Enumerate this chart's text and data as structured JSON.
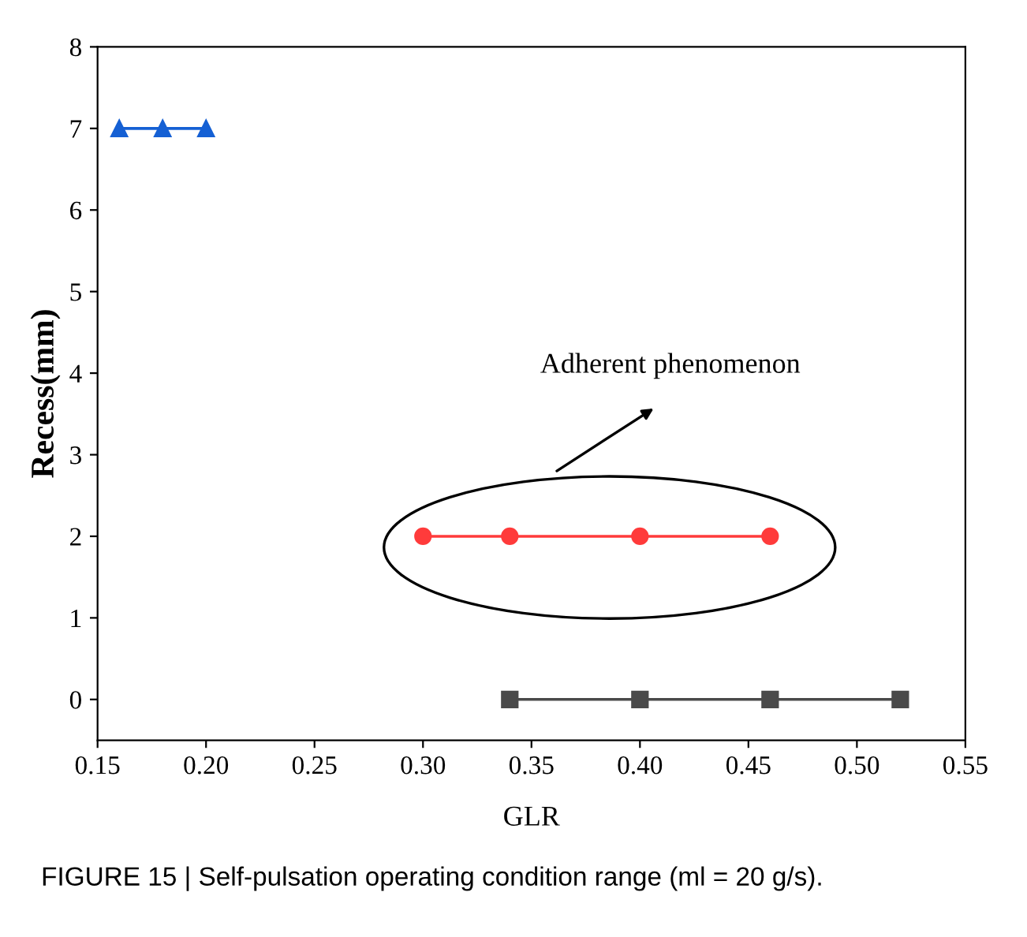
{
  "chart_data": {
    "type": "line",
    "xlabel": "GLR",
    "ylabel": "Recess(mm)",
    "xlim": [
      0.15,
      0.55
    ],
    "xticks": [
      {
        "value": 0.15,
        "label": "0.15"
      },
      {
        "value": 0.2,
        "label": "0.20"
      },
      {
        "value": 0.25,
        "label": "0.25"
      },
      {
        "value": 0.3,
        "label": "0.30"
      },
      {
        "value": 0.35,
        "label": "0.35"
      },
      {
        "value": 0.4,
        "label": "0.40"
      },
      {
        "value": 0.45,
        "label": "0.45"
      },
      {
        "value": 0.5,
        "label": "0.50"
      },
      {
        "value": 0.55,
        "label": "0.55"
      }
    ],
    "ylim": [
      -0.5,
      8
    ],
    "yticks": [
      0,
      1,
      2,
      3,
      4,
      5,
      6,
      7,
      8
    ],
    "grid": false,
    "legend": false,
    "series": [
      {
        "color": "#1560d4",
        "marker": "triangle",
        "x": [
          0.16,
          0.18,
          0.2
        ],
        "values": [
          7,
          7,
          7
        ]
      },
      {
        "color": "#ff3b3b",
        "marker": "circle",
        "x": [
          0.3,
          0.34,
          0.4,
          0.46
        ],
        "values": [
          2,
          2,
          2,
          2
        ]
      },
      {
        "color": "#4a4a4a",
        "marker": "square",
        "x": [
          0.34,
          0.4,
          0.46,
          0.52
        ],
        "values": [
          0,
          0,
          0,
          0
        ]
      }
    ],
    "annotations": [
      "Adherent phenomenon",
      "FIGURE 15 | Self-pulsation operating condition range (ml = 20 g/s)."
    ]
  }
}
